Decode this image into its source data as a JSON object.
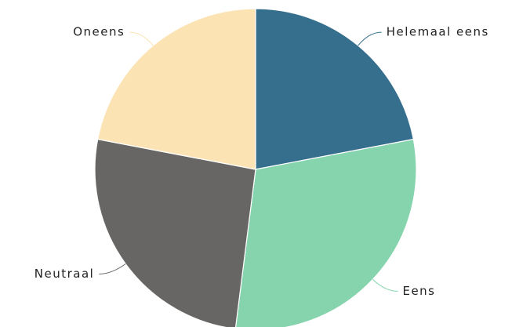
{
  "chart_data": {
    "type": "pie",
    "categories": [
      "Helemaal eens",
      "Eens",
      "Neutraal",
      "Oneens"
    ],
    "values": [
      22,
      30,
      26,
      22
    ],
    "colors": [
      "#356f8d",
      "#86d4ae",
      "#686664",
      "#fbe3b4"
    ]
  }
}
